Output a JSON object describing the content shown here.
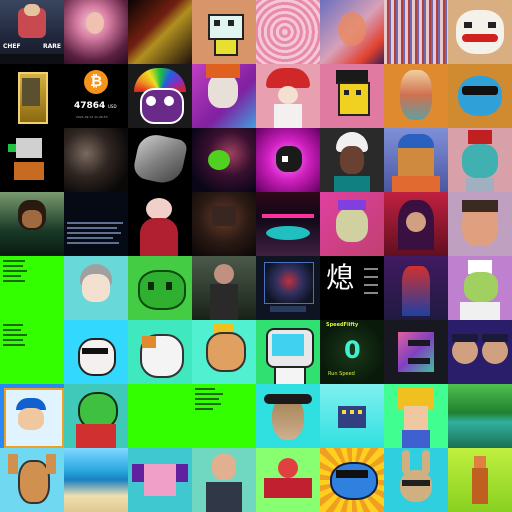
{
  "tiles": [
    {
      "name": "chef-card",
      "bg": "#1b1f2b",
      "text": "CHEF",
      "text2": "RARE"
    },
    {
      "name": "woman-portrait",
      "bg": "#c06a90"
    },
    {
      "name": "abstract-dark",
      "bg": "#7a1a10"
    },
    {
      "name": "pixel-robot-cat",
      "bg": "#d9956a"
    },
    {
      "name": "pink-swirl",
      "bg": "#e8a0b8"
    },
    {
      "name": "glitch-face",
      "bg": "#9aa0c8"
    },
    {
      "name": "glitch-figure",
      "bg": "#b07070"
    },
    {
      "name": "clown-face",
      "bg": "#d9ae80"
    },
    {
      "name": "gold-card",
      "bg": "#000000"
    },
    {
      "name": "bitcoin-price",
      "bg": "#000000",
      "price": "47864",
      "unit": "USD",
      "date": "2021.09.13 11:26:53"
    },
    {
      "name": "rainbow-cat-face",
      "bg": "#1a1a1a"
    },
    {
      "name": "skull-art",
      "bg": "#c040c0"
    },
    {
      "name": "mushroom-girl",
      "bg": "#e8a0b0"
    },
    {
      "name": "pixel-punk-boy",
      "bg": "#e07aa0"
    },
    {
      "name": "trippy-face",
      "bg": "#e08a30"
    },
    {
      "name": "blue-bear-glasses",
      "bg": "#d08a30"
    },
    {
      "name": "pixel-cat-pot",
      "bg": "#000000"
    },
    {
      "name": "dark-faces",
      "bg": "#101010"
    },
    {
      "name": "gray-rock",
      "bg": "#000000"
    },
    {
      "name": "green-comet",
      "bg": "#201030"
    },
    {
      "name": "pink-cow",
      "bg": "#d020c0"
    },
    {
      "name": "white-hair-character",
      "bg": "#2a2a2a"
    },
    {
      "name": "blue-hat-monster",
      "bg": "#4a58a0"
    },
    {
      "name": "zombie-hat",
      "bg": "#d8a0a8"
    },
    {
      "name": "dreads-figure",
      "bg": "#0e2a20"
    },
    {
      "name": "text-document",
      "bg": "#050a14"
    },
    {
      "name": "bride-figure",
      "bg": "#000000"
    },
    {
      "name": "dark-theatre",
      "bg": "#1e1412"
    },
    {
      "name": "neon-stage",
      "bg": "#100818"
    },
    {
      "name": "crown-creature",
      "bg": "#c04070"
    },
    {
      "name": "hooded-figure",
      "bg": "#c02040"
    },
    {
      "name": "typography-portrait",
      "bg": "#c0a0c0"
    },
    {
      "name": "green-doc-list",
      "bg": "#33ff00"
    },
    {
      "name": "anime-boy",
      "bg": "#69d8d8"
    },
    {
      "name": "green-blob",
      "bg": "#44cc44"
    },
    {
      "name": "warrior-woman",
      "bg": "#2c3a2e"
    },
    {
      "name": "game-card",
      "bg": "#0e1422"
    },
    {
      "name": "kanji-card",
      "bg": "#000000",
      "glyph": "熄"
    },
    {
      "name": "robot-suit",
      "bg": "#201a40"
    },
    {
      "name": "chef-dino",
      "bg": "#c080d0"
    },
    {
      "name": "green-doc-2",
      "bg": "#33ff00"
    },
    {
      "name": "golf-character",
      "bg": "#33d8ff"
    },
    {
      "name": "calico-cat",
      "bg": "#40e8c0"
    },
    {
      "name": "crowned-lion",
      "bg": "#50f0d0"
    },
    {
      "name": "tv-robot",
      "bg": "#30e070"
    },
    {
      "name": "speed-card",
      "bg": "#0a1a0a",
      "title": "SpeedFlifty",
      "digit": "0",
      "subtitle": "Run Speed"
    },
    {
      "name": "chrome-letter",
      "bg": "#181820"
    },
    {
      "name": "pirate-kids",
      "bg": "#2a1e6a"
    },
    {
      "name": "boy-baseball-cap",
      "bg": "#2888f8"
    },
    {
      "name": "green-turtle",
      "bg": "#40c8b8"
    },
    {
      "name": "green-block",
      "bg": "#33ff00"
    },
    {
      "name": "dark-gray-document",
      "bg": "#33ff00"
    },
    {
      "name": "owl-bird",
      "bg": "#30e0e0"
    },
    {
      "name": "pixel-building",
      "bg": "#30e0e0"
    },
    {
      "name": "pixel-anime-hair",
      "bg": "#40ff90"
    },
    {
      "name": "forest-lake",
      "bg": "#30a850"
    },
    {
      "name": "dog-with-glasses",
      "bg": "#70d8f0"
    },
    {
      "name": "beach-scene",
      "bg": "#2aa8e0"
    },
    {
      "name": "pink-dragon",
      "bg": "#40c8d0"
    },
    {
      "name": "man-suit",
      "bg": "#70d8c0"
    },
    {
      "name": "crab-fighter",
      "bg": "#88ff70"
    },
    {
      "name": "blue-fish-sunglasses",
      "bg": "#ffd020"
    },
    {
      "name": "bunny-glasses",
      "bg": "#30cfe0"
    },
    {
      "name": "orange-soldier",
      "bg": "#88d020"
    }
  ]
}
